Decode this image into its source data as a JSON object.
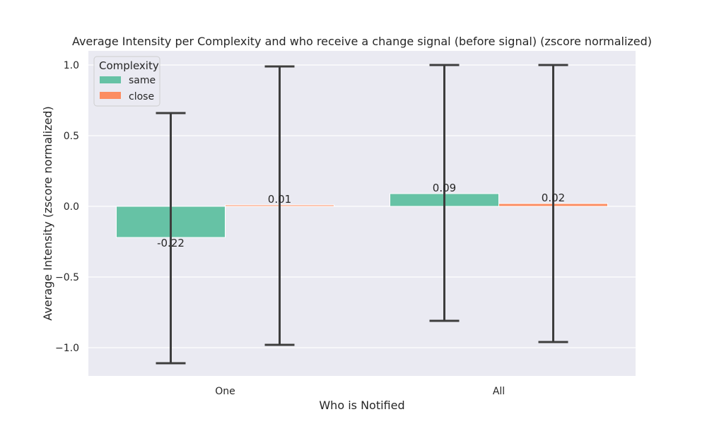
{
  "chart_data": {
    "type": "bar",
    "title": "Average Intensity per Complexity and who receive a change signal (before signal) (zscore normalized)",
    "xlabel": "Who is Notified",
    "ylabel": "Average Intensity (zscore normalized)",
    "categories": [
      "One",
      "All"
    ],
    "ylim": [
      -1.2,
      1.1
    ],
    "yticks": [
      -1.0,
      -0.5,
      0.0,
      0.5,
      1.0
    ],
    "ytick_labels": [
      "−1.0",
      "−0.5",
      "0.0",
      "0.5",
      "1.0"
    ],
    "grid": true,
    "legend": {
      "title": "Complexity",
      "placement": "top-left"
    },
    "series": [
      {
        "name": "same",
        "color": "#66c2a5",
        "values": [
          -0.22,
          0.09
        ],
        "labels": [
          "-0.22",
          "0.09"
        ],
        "error_low": [
          -1.11,
          -0.81
        ],
        "error_high": [
          0.66,
          1.0
        ]
      },
      {
        "name": "close",
        "color": "#fc8d62",
        "values": [
          0.01,
          0.02
        ],
        "labels": [
          "0.01",
          "0.02"
        ],
        "error_low": [
          -0.98,
          -0.96
        ],
        "error_high": [
          0.99,
          1.0
        ]
      }
    ]
  }
}
